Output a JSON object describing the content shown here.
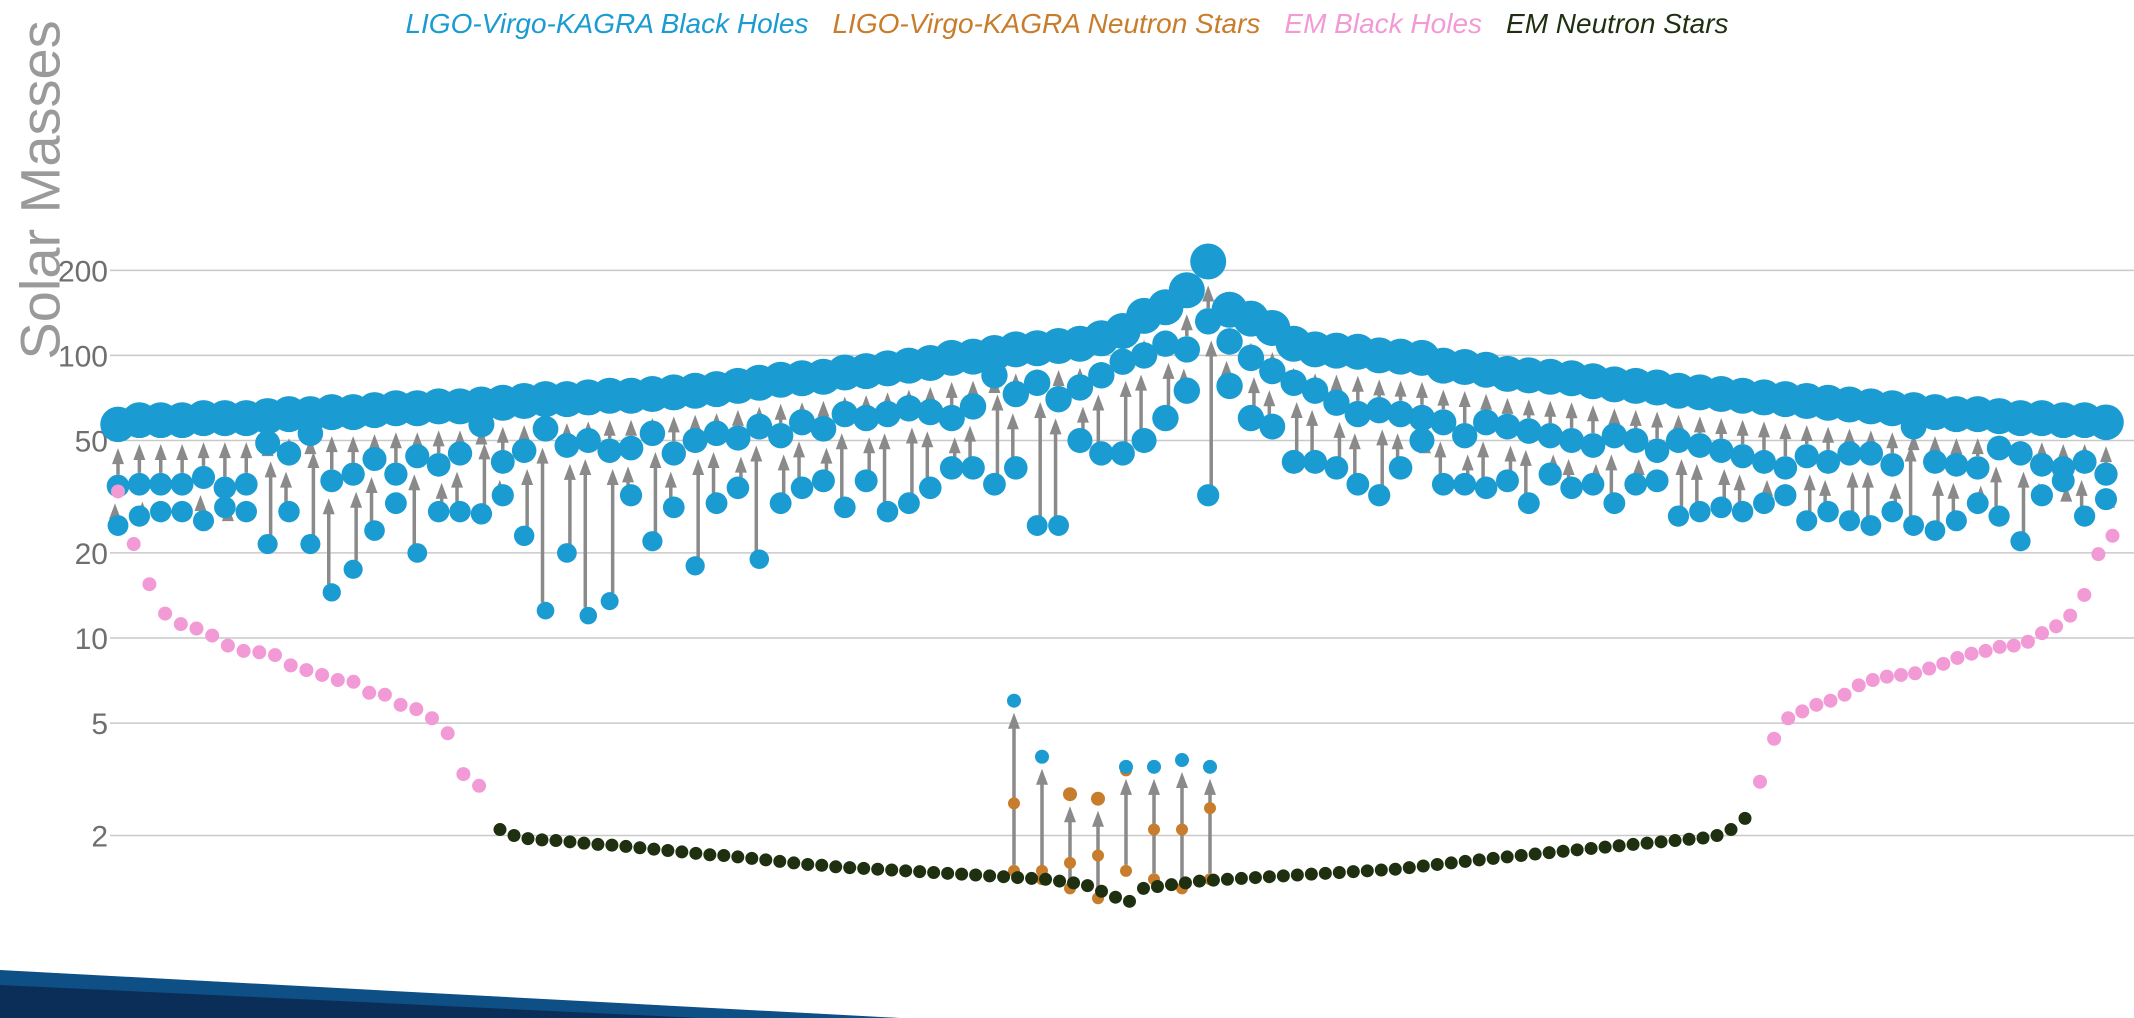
{
  "chart_data": {
    "type": "scatter",
    "title": "",
    "ylabel": "Solar Masses",
    "xlabel": "",
    "yscale": "log",
    "ylim": [
      1.2,
      260
    ],
    "yticks": [
      {
        "value": 200,
        "label": "200"
      },
      {
        "value": 100,
        "label": "100"
      },
      {
        "value": 50,
        "label": "50"
      },
      {
        "value": 20,
        "label": "20"
      },
      {
        "value": 10,
        "label": "10"
      },
      {
        "value": 5,
        "label": "5"
      },
      {
        "value": 2,
        "label": "2"
      }
    ],
    "grid": true,
    "legend": "top-center",
    "series": [
      {
        "name": "LIGO-Virgo-KAGRA Black Holes",
        "color": "#1a9bd1"
      },
      {
        "name": "LIGO-Virgo-KAGRA Neutron Stars",
        "color": "#c87d2c"
      },
      {
        "name": "EM Black Holes",
        "color": "#f29ad6"
      },
      {
        "name": "EM Neutron Stars",
        "color": "#1e3010"
      }
    ],
    "mergers": [
      [
        34.5,
        25.0,
        57.0
      ],
      [
        35.0,
        27.0,
        59.0
      ],
      [
        35.0,
        28.0,
        59.0
      ],
      [
        35.0,
        28.0,
        59.0
      ],
      [
        37.0,
        26.0,
        60.0
      ],
      [
        34.0,
        29.0,
        60.0
      ],
      [
        35.0,
        28.0,
        60.0
      ],
      [
        49.0,
        21.5,
        61.0
      ],
      [
        45.0,
        28.0,
        62.0
      ],
      [
        53.0,
        21.5,
        62.0
      ],
      [
        36.0,
        14.5,
        63.0
      ],
      [
        38.0,
        17.5,
        63.0
      ],
      [
        43.0,
        24.0,
        64.0
      ],
      [
        38.0,
        30.0,
        65.0
      ],
      [
        44.0,
        20.0,
        65.0
      ],
      [
        41.0,
        28.0,
        66.0
      ],
      [
        45.0,
        28.0,
        66.0
      ],
      [
        57.0,
        27.5,
        67.0
      ],
      [
        42.0,
        32.0,
        68.0
      ],
      [
        46.0,
        23.0,
        69.0
      ],
      [
        55.0,
        12.5,
        70.0
      ],
      [
        48.0,
        20.0,
        70.0
      ],
      [
        50.0,
        12.0,
        71.0
      ],
      [
        46.0,
        13.5,
        72.0
      ],
      [
        47.0,
        32.0,
        72.0
      ],
      [
        53.0,
        22.0,
        73.0
      ],
      [
        45.0,
        29.0,
        74.0
      ],
      [
        50.0,
        18.0,
        75.0
      ],
      [
        53.0,
        30.0,
        76.0
      ],
      [
        51.0,
        34.0,
        78.0
      ],
      [
        56.0,
        19.0,
        80.0
      ],
      [
        52.0,
        30.0,
        82.0
      ],
      [
        58.0,
        34.0,
        83.0
      ],
      [
        55.0,
        36.0,
        84.0
      ],
      [
        62.0,
        29.0,
        87.0
      ],
      [
        60.0,
        36.0,
        88.0
      ],
      [
        62.0,
        28.0,
        90.0
      ],
      [
        65.0,
        30.0,
        92.0
      ],
      [
        63.0,
        34.0,
        94.0
      ],
      [
        60.0,
        40.0,
        98.0
      ],
      [
        66.0,
        40.0,
        99.0
      ],
      [
        85.0,
        35.0,
        102.0
      ],
      [
        73.0,
        40.0,
        105.0
      ],
      [
        80.0,
        25.0,
        106.0
      ],
      [
        70.0,
        25.0,
        108.0
      ],
      [
        77.0,
        50.0,
        110.0
      ],
      [
        85.0,
        45.0,
        115.0
      ],
      [
        95.0,
        45.0,
        122.0
      ],
      [
        100.0,
        50.0,
        138.0
      ],
      [
        110.0,
        60.0,
        148.0
      ],
      [
        105.0,
        75.0,
        170.0
      ],
      [
        132.0,
        32.0,
        215.0
      ],
      [
        112.0,
        78.0,
        145.0
      ],
      [
        98.0,
        60.0,
        135.0
      ],
      [
        88.0,
        56.0,
        125.0
      ],
      [
        80.0,
        42.0,
        110.0
      ],
      [
        75.0,
        42.0,
        105.0
      ],
      [
        68.0,
        40.0,
        104.0
      ],
      [
        62.0,
        35.0,
        103.0
      ],
      [
        64.0,
        32.0,
        100.0
      ],
      [
        62.0,
        40.0,
        99.0
      ],
      [
        60.0,
        50.0,
        98.0
      ],
      [
        58.0,
        35.0,
        92.0
      ],
      [
        52.0,
        35.0,
        91.0
      ],
      [
        58.0,
        34.0,
        89.0
      ],
      [
        56.0,
        36.0,
        86.0
      ],
      [
        54.0,
        30.0,
        85.0
      ],
      [
        52.0,
        38.0,
        84.0
      ],
      [
        50.0,
        34.0,
        83.0
      ],
      [
        48.0,
        35.0,
        81.0
      ],
      [
        52.0,
        30.0,
        79.0
      ],
      [
        50.0,
        35.0,
        78.0
      ],
      [
        46.0,
        36.0,
        77.0
      ],
      [
        50.0,
        27.0,
        75.0
      ],
      [
        48.0,
        28.0,
        74.0
      ],
      [
        46.0,
        29.0,
        73.0
      ],
      [
        44.0,
        28.0,
        72.0
      ],
      [
        42.0,
        30.0,
        71.0
      ],
      [
        40.0,
        32.0,
        70.0
      ],
      [
        44.0,
        26.0,
        69.0
      ],
      [
        42.0,
        28.0,
        68.0
      ],
      [
        45.0,
        26.0,
        67.0
      ],
      [
        45.0,
        25.0,
        66.0
      ],
      [
        41.0,
        28.0,
        65.0
      ],
      [
        56.0,
        25.0,
        64.0
      ],
      [
        42.0,
        24.0,
        63.0
      ],
      [
        41.0,
        26.0,
        62.0
      ],
      [
        40.0,
        30.0,
        62.0
      ],
      [
        47.0,
        27.0,
        61.0
      ],
      [
        45.0,
        22.0,
        60.0
      ],
      [
        41.0,
        32.0,
        60.0
      ],
      [
        40.0,
        36.0,
        59.0
      ],
      [
        42.0,
        27.0,
        59.0
      ],
      [
        38.0,
        31.0,
        58.0
      ]
    ],
    "em_black_holes": [
      33,
      21.5,
      15.5,
      12.2,
      11.2,
      10.8,
      10.2,
      9.4,
      9.0,
      8.9,
      8.7,
      8.0,
      7.7,
      7.4,
      7.1,
      7.0,
      6.4,
      6.3,
      5.8,
      5.6,
      5.2,
      4.6,
      3.3,
      3.0,
      3.1,
      4.4,
      5.2,
      5.5,
      5.8,
      6.0,
      6.3,
      6.8,
      7.1,
      7.3,
      7.4,
      7.5,
      7.8,
      8.1,
      8.5,
      8.8,
      9.0,
      9.3,
      9.4,
      9.7,
      10.4,
      11.0,
      12.0,
      14.2,
      19.8,
      23.0
    ],
    "em_neutron_stars": [
      2.1,
      2.0,
      1.95,
      1.93,
      1.92,
      1.9,
      1.88,
      1.86,
      1.85,
      1.83,
      1.81,
      1.79,
      1.77,
      1.75,
      1.73,
      1.71,
      1.7,
      1.68,
      1.66,
      1.64,
      1.62,
      1.6,
      1.58,
      1.57,
      1.55,
      1.54,
      1.53,
      1.52,
      1.51,
      1.5,
      1.49,
      1.48,
      1.47,
      1.46,
      1.45,
      1.44,
      1.43,
      1.42,
      1.41,
      1.4,
      1.38,
      1.36,
      1.33,
      1.27,
      1.21,
      1.17,
      1.3,
      1.32,
      1.34,
      1.36,
      1.38,
      1.39,
      1.4,
      1.41,
      1.42,
      1.43,
      1.44,
      1.45,
      1.46,
      1.47,
      1.48,
      1.49,
      1.5,
      1.51,
      1.52,
      1.54,
      1.56,
      1.58,
      1.6,
      1.62,
      1.64,
      1.66,
      1.68,
      1.7,
      1.72,
      1.74,
      1.76,
      1.78,
      1.8,
      1.82,
      1.84,
      1.86,
      1.88,
      1.9,
      1.92,
      1.94,
      1.96,
      2.0,
      2.1,
      2.3
    ],
    "neutron_star_mergers": [
      [
        2.6,
        1.5,
        6.0
      ],
      [
        1.5,
        1.4,
        3.8
      ],
      [
        1.6,
        1.3,
        2.8
      ],
      [
        1.7,
        1.2,
        2.7
      ],
      [
        3.4,
        1.5,
        3.5
      ],
      [
        2.1,
        1.4,
        3.5
      ],
      [
        2.1,
        1.3,
        3.7
      ],
      [
        2.5,
        1.4,
        3.5
      ]
    ]
  }
}
